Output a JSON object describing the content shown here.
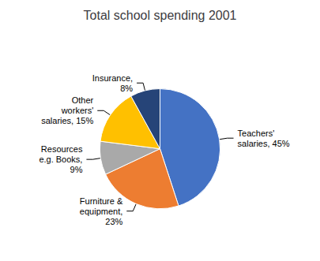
{
  "chart_data": {
    "type": "pie",
    "title": "Total school spending 2001",
    "categories": [
      "Teachers'\nsalaries, 45%",
      "Furniture &\nequipment,\n23%",
      "Resources\ne.g. Books,\n9%",
      "Other\nworkers'\nsalaries, 15%",
      "Insurance,\n8%"
    ],
    "values": [
      45,
      23,
      9,
      15,
      8
    ],
    "colors": [
      "#4472C4",
      "#ED7D31",
      "#A9A9A9",
      "#FFC000",
      "#264478"
    ]
  }
}
